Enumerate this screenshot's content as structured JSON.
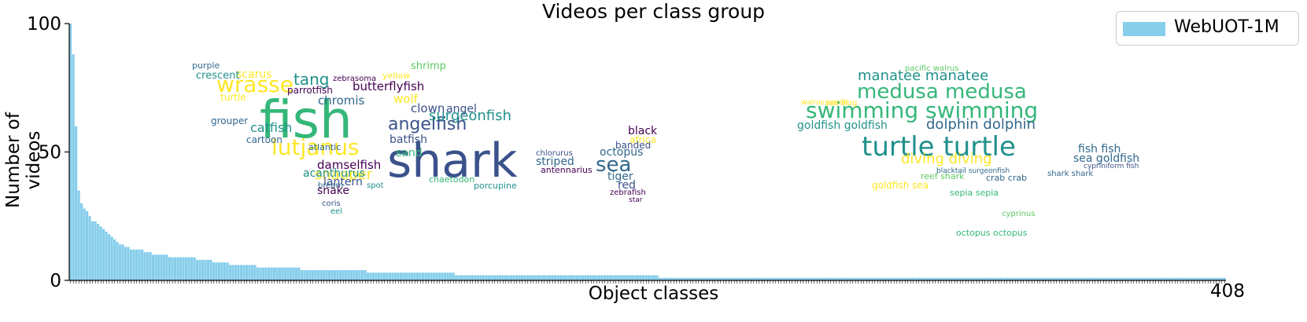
{
  "chart_data": {
    "type": "bar",
    "title": "Videos per class group",
    "xlabel": "Object classes",
    "ylabel": "Number of videos",
    "ylim": [
      0,
      100
    ],
    "yticks": [
      "0",
      "50",
      "100"
    ],
    "x_end_label": "408",
    "legend": {
      "label": "WebUOT-1M",
      "placement": "top-right"
    },
    "grid": false,
    "colors": {
      "bar": "#87ceeb",
      "wordcloud": [
        "#440154",
        "#3b528b",
        "#21918c",
        "#5ec962",
        "#fde725",
        "#31688e",
        "#35b779"
      ]
    },
    "series": [
      {
        "name": "WebUOT-1M",
        "values": [
          100,
          88,
          60,
          35,
          30,
          28,
          27,
          25,
          23,
          23,
          22,
          21,
          20,
          19,
          18,
          17,
          16,
          15,
          14,
          14,
          13,
          13,
          12,
          12,
          12,
          12,
          12,
          11,
          11,
          11,
          10,
          10,
          10,
          10,
          10,
          10,
          9,
          9,
          9,
          9,
          9,
          9,
          9,
          9,
          9,
          9,
          8,
          8,
          8,
          8,
          8,
          8,
          7,
          7,
          7,
          7,
          7,
          7,
          6,
          6,
          6,
          6,
          6,
          6,
          6,
          6,
          6,
          6,
          5,
          5,
          5,
          5,
          5,
          5,
          5,
          5,
          5,
          5,
          5,
          5,
          5,
          5,
          5,
          5,
          4,
          4,
          4,
          4,
          4,
          4,
          4,
          4,
          4,
          4,
          4,
          4,
          4,
          4,
          4,
          4,
          4,
          4,
          4,
          4,
          4,
          4,
          4,
          4,
          3,
          3,
          3,
          3,
          3,
          3,
          3,
          3,
          3,
          3,
          3,
          3,
          3,
          3,
          3,
          3,
          3,
          3,
          3,
          3,
          3,
          3,
          3,
          3,
          3,
          3,
          3,
          3,
          3,
          3,
          3,
          3,
          2,
          2,
          2,
          2,
          2,
          2,
          2,
          2,
          2,
          2,
          2,
          2,
          2,
          2,
          2,
          2,
          2,
          2,
          2,
          2,
          2,
          2,
          2,
          2,
          2,
          2,
          2,
          2,
          2,
          2,
          2,
          2,
          2,
          2,
          2,
          2,
          2,
          2,
          2,
          2,
          2,
          2,
          2,
          2,
          2,
          2,
          2,
          2,
          2,
          2,
          2,
          2,
          2,
          2,
          2,
          2,
          2,
          2,
          2,
          2,
          2,
          2,
          2,
          2,
          2,
          2,
          2,
          2,
          2,
          2,
          2,
          2,
          2,
          2,
          1,
          1,
          1,
          1,
          1,
          1,
          1,
          1,
          1,
          1,
          1,
          1,
          1,
          1,
          1,
          1,
          1,
          1,
          1,
          1,
          1,
          1,
          1,
          1,
          1,
          1,
          1,
          1,
          1,
          1,
          1,
          1,
          1,
          1,
          1,
          1,
          1,
          1,
          1,
          1,
          1,
          1,
          1,
          1,
          1,
          1,
          1,
          1,
          1,
          1,
          1,
          1,
          1,
          1,
          1,
          1,
          1,
          1,
          1,
          1,
          1,
          1,
          1,
          1,
          1,
          1,
          1,
          1,
          1,
          1,
          1,
          1,
          1,
          1,
          1,
          1,
          1,
          1,
          1,
          1,
          1,
          1,
          1,
          1,
          1,
          1,
          1,
          1,
          1,
          1,
          1,
          1,
          1,
          1,
          1,
          1,
          1,
          1,
          1,
          1,
          1,
          1,
          1,
          1,
          1,
          1,
          1,
          1,
          1,
          1,
          1,
          1,
          1,
          1,
          1,
          1,
          1,
          1,
          1,
          1,
          1,
          1,
          1,
          1,
          1,
          1,
          1,
          1,
          1,
          1,
          1,
          1,
          1,
          1,
          1,
          1,
          1,
          1,
          1,
          1,
          1,
          1,
          1,
          1,
          1,
          1,
          1,
          1,
          1,
          1,
          1,
          1,
          1,
          1,
          1,
          1,
          1,
          1,
          1,
          1,
          1,
          1,
          1,
          1,
          1,
          1,
          1,
          1,
          1,
          1,
          1,
          1,
          1,
          1,
          1,
          1,
          1,
          1,
          1,
          1,
          1,
          1,
          1,
          1,
          1,
          1,
          1,
          1,
          1,
          1,
          1,
          1,
          1,
          1,
          1,
          1,
          1,
          1,
          1,
          1,
          1,
          1,
          1,
          1,
          1,
          1
        ]
      }
    ],
    "wordcloud_left": [
      {
        "w": "fish",
        "c": 6
      },
      {
        "w": "shark",
        "c": 1
      },
      {
        "w": "wrasse",
        "c": 4
      },
      {
        "w": "lutjanus",
        "c": 4
      },
      {
        "w": "angelfish",
        "c": 1
      },
      {
        "w": "tang",
        "c": 2
      },
      {
        "w": "butterflyfish",
        "c": 0
      },
      {
        "w": "chromis",
        "c": 5
      },
      {
        "w": "surgeonfish",
        "c": 2
      },
      {
        "w": "damselfish",
        "c": 0
      },
      {
        "w": "snapper",
        "c": 4
      },
      {
        "w": "sea",
        "c": 5
      },
      {
        "w": "black",
        "c": 0
      },
      {
        "w": "clown",
        "c": 1
      },
      {
        "w": "scarus",
        "c": 4
      },
      {
        "w": "purple",
        "c": 5
      },
      {
        "w": "crescent",
        "c": 2
      },
      {
        "w": "zebrasoma",
        "c": 0
      },
      {
        "w": "yellow",
        "c": 4
      },
      {
        "w": "shrimp",
        "c": 3
      },
      {
        "w": "wolf",
        "c": 4
      },
      {
        "w": "catfish",
        "c": 2
      },
      {
        "w": "turtle",
        "c": 4
      },
      {
        "w": "grouper",
        "c": 5
      },
      {
        "w": "cartoon",
        "c": 5
      },
      {
        "w": "parrotfish",
        "c": 0
      },
      {
        "w": "batfish",
        "c": 1
      },
      {
        "w": "sand",
        "c": 6
      },
      {
        "w": "octopus",
        "c": 5
      },
      {
        "w": "striped",
        "c": 5
      },
      {
        "w": "banded",
        "c": 1
      },
      {
        "w": "tiger",
        "c": 5
      },
      {
        "w": "red",
        "c": 1
      },
      {
        "w": "lantern",
        "c": 1
      },
      {
        "w": "snake",
        "c": 0
      },
      {
        "w": "bream",
        "c": 5
      },
      {
        "w": "spot",
        "c": 2
      },
      {
        "w": "coris",
        "c": 1
      },
      {
        "w": "eel",
        "c": 2
      },
      {
        "w": "chaetodon",
        "c": 6
      },
      {
        "w": "antennarius",
        "c": 0
      },
      {
        "w": "porcupine",
        "c": 2
      },
      {
        "w": "atlantic",
        "c": 5
      },
      {
        "w": "chlorurus",
        "c": 1
      },
      {
        "w": "zebrafish",
        "c": 0
      },
      {
        "w": "star",
        "c": 0
      },
      {
        "w": "africa",
        "c": 4
      },
      {
        "w": "angel",
        "c": 1
      },
      {
        "w": "acanthurus",
        "c": 2
      }
    ],
    "wordcloud_right": [
      {
        "w": "medusa medusa",
        "c": 6
      },
      {
        "w": "swimming swimming",
        "c": 6
      },
      {
        "w": "turtle turtle",
        "c": 2
      },
      {
        "w": "manatee manatee",
        "c": 2
      },
      {
        "w": "goldfish goldfish",
        "c": 2
      },
      {
        "w": "dolphin dolphin",
        "c": 5
      },
      {
        "w": "diving diving",
        "c": 4
      },
      {
        "w": "fish fish",
        "c": 5
      },
      {
        "w": "sea goldfish",
        "c": 5
      },
      {
        "w": "sepia sepia",
        "c": 6
      },
      {
        "w": "goldfish sea",
        "c": 4
      },
      {
        "w": "octopus octopus",
        "c": 6
      },
      {
        "w": "reef shark",
        "c": 3
      },
      {
        "w": "crab crab",
        "c": 5
      },
      {
        "w": "shark shark",
        "c": 5
      },
      {
        "w": "pacific walrus",
        "c": 3
      },
      {
        "w": "sea slug",
        "c": 4
      },
      {
        "w": "cyprinus",
        "c": 3
      },
      {
        "w": "blacktail surgeonfish",
        "c": 5
      },
      {
        "w": "walrus pacific",
        "c": 4
      },
      {
        "w": "cypriniform fish",
        "c": 1
      }
    ]
  }
}
